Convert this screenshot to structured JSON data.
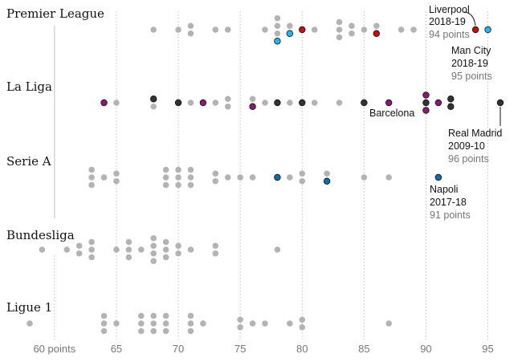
{
  "chart_data": {
    "type": "scatter",
    "title": "",
    "xlabel": "",
    "ylabel": "",
    "xlim": [
      58,
      97
    ],
    "x_ticks": [
      {
        "value": 60,
        "label": "60 points"
      },
      {
        "value": 65,
        "label": "65"
      },
      {
        "value": 70,
        "label": "70"
      },
      {
        "value": 75,
        "label": "75"
      },
      {
        "value": 80,
        "label": "80"
      },
      {
        "value": 85,
        "label": "85"
      },
      {
        "value": 90,
        "label": "90"
      },
      {
        "value": 95,
        "label": "95"
      }
    ],
    "colors": {
      "default": "#b3b3b3",
      "liverpool": "#cc0a11",
      "man_city": "#27b7f0",
      "real_madrid": "#333333",
      "barcelona": "#8b1a73",
      "napoli": "#0a6ea8"
    },
    "series": [
      {
        "league": "Premier League",
        "points": [
          {
            "x": 68,
            "c": "default"
          },
          {
            "x": 70,
            "c": "default"
          },
          {
            "x": 71,
            "c": "default"
          },
          {
            "x": 71,
            "c": "default"
          },
          {
            "x": 73,
            "c": "default"
          },
          {
            "x": 74,
            "c": "default"
          },
          {
            "x": 77,
            "c": "default"
          },
          {
            "x": 78,
            "c": "default"
          },
          {
            "x": 78,
            "c": "default"
          },
          {
            "x": 78,
            "c": "default"
          },
          {
            "x": 78,
            "c": "man_city"
          },
          {
            "x": 79,
            "c": "default"
          },
          {
            "x": 79,
            "c": "man_city"
          },
          {
            "x": 80,
            "c": "liverpool"
          },
          {
            "x": 81,
            "c": "default"
          },
          {
            "x": 83,
            "c": "default"
          },
          {
            "x": 83,
            "c": "default"
          },
          {
            "x": 83,
            "c": "default"
          },
          {
            "x": 84,
            "c": "default"
          },
          {
            "x": 84,
            "c": "default"
          },
          {
            "x": 85,
            "c": "default"
          },
          {
            "x": 86,
            "c": "default"
          },
          {
            "x": 86,
            "c": "liverpool"
          },
          {
            "x": 88,
            "c": "default"
          },
          {
            "x": 89,
            "c": "default"
          },
          {
            "x": 94,
            "c": "liverpool"
          },
          {
            "x": 95,
            "c": "man_city"
          }
        ]
      },
      {
        "league": "La Liga",
        "points": [
          {
            "x": 64,
            "c": "barcelona"
          },
          {
            "x": 65,
            "c": "default"
          },
          {
            "x": 68,
            "c": "real_madrid"
          },
          {
            "x": 68,
            "c": "default"
          },
          {
            "x": 70,
            "c": "real_madrid"
          },
          {
            "x": 71,
            "c": "default"
          },
          {
            "x": 72,
            "c": "barcelona"
          },
          {
            "x": 73,
            "c": "default"
          },
          {
            "x": 74,
            "c": "default"
          },
          {
            "x": 74,
            "c": "default"
          },
          {
            "x": 76,
            "c": "default"
          },
          {
            "x": 76,
            "c": "barcelona"
          },
          {
            "x": 77,
            "c": "default"
          },
          {
            "x": 78,
            "c": "real_madrid"
          },
          {
            "x": 79,
            "c": "default"
          },
          {
            "x": 80,
            "c": "real_madrid"
          },
          {
            "x": 81,
            "c": "default"
          },
          {
            "x": 83,
            "c": "default"
          },
          {
            "x": 85,
            "c": "real_madrid"
          },
          {
            "x": 87,
            "c": "barcelona"
          },
          {
            "x": 90,
            "c": "barcelona"
          },
          {
            "x": 90,
            "c": "real_madrid"
          },
          {
            "x": 90,
            "c": "barcelona"
          },
          {
            "x": 91,
            "c": "barcelona"
          },
          {
            "x": 92,
            "c": "real_madrid"
          },
          {
            "x": 92,
            "c": "real_madrid"
          },
          {
            "x": 96,
            "c": "real_madrid"
          }
        ]
      },
      {
        "league": "Serie A",
        "points": [
          {
            "x": 63,
            "c": "default"
          },
          {
            "x": 63,
            "c": "default"
          },
          {
            "x": 63,
            "c": "default"
          },
          {
            "x": 64,
            "c": "default"
          },
          {
            "x": 65,
            "c": "default"
          },
          {
            "x": 65,
            "c": "default"
          },
          {
            "x": 69,
            "c": "default"
          },
          {
            "x": 69,
            "c": "default"
          },
          {
            "x": 69,
            "c": "default"
          },
          {
            "x": 70,
            "c": "default"
          },
          {
            "x": 70,
            "c": "default"
          },
          {
            "x": 70,
            "c": "default"
          },
          {
            "x": 71,
            "c": "default"
          },
          {
            "x": 71,
            "c": "default"
          },
          {
            "x": 71,
            "c": "default"
          },
          {
            "x": 73,
            "c": "default"
          },
          {
            "x": 73,
            "c": "default"
          },
          {
            "x": 74,
            "c": "default"
          },
          {
            "x": 75,
            "c": "default"
          },
          {
            "x": 76,
            "c": "default"
          },
          {
            "x": 78,
            "c": "napoli"
          },
          {
            "x": 79,
            "c": "default"
          },
          {
            "x": 80,
            "c": "default"
          },
          {
            "x": 80,
            "c": "default"
          },
          {
            "x": 82,
            "c": "default"
          },
          {
            "x": 82,
            "c": "napoli"
          },
          {
            "x": 85,
            "c": "default"
          },
          {
            "x": 87,
            "c": "default"
          },
          {
            "x": 91,
            "c": "napoli"
          }
        ]
      },
      {
        "league": "Bundesliga",
        "points": [
          {
            "x": 59,
            "c": "default"
          },
          {
            "x": 61,
            "c": "default"
          },
          {
            "x": 62,
            "c": "default"
          },
          {
            "x": 62,
            "c": "default"
          },
          {
            "x": 63,
            "c": "default"
          },
          {
            "x": 63,
            "c": "default"
          },
          {
            "x": 63,
            "c": "default"
          },
          {
            "x": 65,
            "c": "default"
          },
          {
            "x": 66,
            "c": "default"
          },
          {
            "x": 66,
            "c": "default"
          },
          {
            "x": 66,
            "c": "default"
          },
          {
            "x": 67,
            "c": "default"
          },
          {
            "x": 68,
            "c": "default"
          },
          {
            "x": 68,
            "c": "default"
          },
          {
            "x": 68,
            "c": "default"
          },
          {
            "x": 68,
            "c": "default"
          },
          {
            "x": 69,
            "c": "default"
          },
          {
            "x": 69,
            "c": "default"
          },
          {
            "x": 69,
            "c": "default"
          },
          {
            "x": 70,
            "c": "default"
          },
          {
            "x": 70,
            "c": "default"
          },
          {
            "x": 71,
            "c": "default"
          },
          {
            "x": 73,
            "c": "default"
          },
          {
            "x": 73,
            "c": "default"
          },
          {
            "x": 78,
            "c": "default"
          }
        ]
      },
      {
        "league": "Ligue 1",
        "points": [
          {
            "x": 58,
            "c": "default"
          },
          {
            "x": 64,
            "c": "default"
          },
          {
            "x": 64,
            "c": "default"
          },
          {
            "x": 64,
            "c": "default"
          },
          {
            "x": 65,
            "c": "default"
          },
          {
            "x": 67,
            "c": "default"
          },
          {
            "x": 67,
            "c": "default"
          },
          {
            "x": 67,
            "c": "default"
          },
          {
            "x": 68,
            "c": "default"
          },
          {
            "x": 68,
            "c": "default"
          },
          {
            "x": 68,
            "c": "default"
          },
          {
            "x": 69,
            "c": "default"
          },
          {
            "x": 69,
            "c": "default"
          },
          {
            "x": 69,
            "c": "default"
          },
          {
            "x": 71,
            "c": "default"
          },
          {
            "x": 71,
            "c": "default"
          },
          {
            "x": 71,
            "c": "default"
          },
          {
            "x": 72,
            "c": "default"
          },
          {
            "x": 75,
            "c": "default"
          },
          {
            "x": 75,
            "c": "default"
          },
          {
            "x": 76,
            "c": "default"
          },
          {
            "x": 77,
            "c": "default"
          },
          {
            "x": 79,
            "c": "default"
          },
          {
            "x": 80,
            "c": "default"
          },
          {
            "x": 80,
            "c": "default"
          },
          {
            "x": 87,
            "c": "default"
          }
        ]
      }
    ],
    "annotations": [
      {
        "league": "Premier League",
        "x": 94,
        "name": "Liverpool",
        "season": "2018-19",
        "points": "94 points"
      },
      {
        "league": "Premier League",
        "x": 95,
        "name": "Man City",
        "season": "2018-19",
        "points": "95 points"
      },
      {
        "league": "La Liga",
        "x": 87,
        "name": "Barcelona"
      },
      {
        "league": "La Liga",
        "x": 96,
        "name": "Real Madrid",
        "season": "2009-10",
        "points": "96 points"
      },
      {
        "league": "Serie A",
        "x": 91,
        "name": "Napoli",
        "season": "2017-18",
        "points": "91 points"
      }
    ]
  }
}
